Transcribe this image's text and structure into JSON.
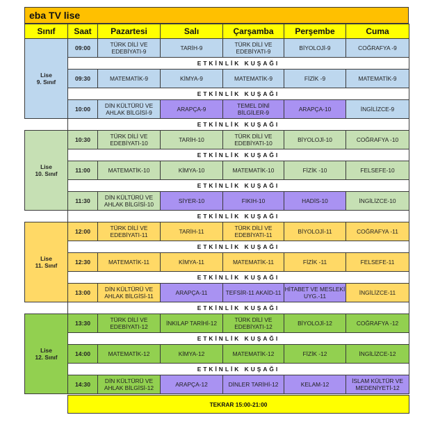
{
  "title": "eba TV lise",
  "headers": [
    "Sınıf",
    "Saat",
    "Pazartesi",
    "Salı",
    "Çarşamba",
    "Perşembe",
    "Cuma"
  ],
  "break_label": "ETKİNLİK KUŞAĞI",
  "repeat_label": "TEKRAR 15:00-21:00",
  "colors": {
    "title": "#ffc000",
    "header": "#ffff00",
    "elective": "#a992f2",
    "repeat": "#ffff00"
  },
  "grades": [
    {
      "label_1": "Lise",
      "label_2": "9. Sınıf",
      "color": "#bdd7ee",
      "slots": [
        {
          "time": "09:00",
          "subjects": [
            {
              "text": "TÜRK DİLİ VE EDEBİYATI-9"
            },
            {
              "text": "TARİH-9"
            },
            {
              "text": "TÜRK DİLİ VE EDEBİYATI-9"
            },
            {
              "text": "BİYOLOJİ-9"
            },
            {
              "text": "COĞRAFYA -9"
            }
          ]
        },
        {
          "time": "09:30",
          "subjects": [
            {
              "text": "MATEMATİK-9"
            },
            {
              "text": "KİMYA-9"
            },
            {
              "text": "MATEMATİK-9"
            },
            {
              "text": "FİZİK -9"
            },
            {
              "text": "MATEMATİK-9"
            }
          ]
        },
        {
          "time": "10:00",
          "subjects": [
            {
              "text": "DİN KÜLTÜRÜ VE AHLAK BİLGİSİ-9"
            },
            {
              "text": "ARAPÇA-9",
              "elective": true
            },
            {
              "text": "TEMEL DİNİ BİLGİLER-9",
              "elective": true
            },
            {
              "text": "ARAPÇA-10",
              "elective": true
            },
            {
              "text": "İNGİLİZCE-9"
            }
          ]
        }
      ]
    },
    {
      "label_1": "Lise",
      "label_2": "10. Sınıf",
      "color": "#c6e0b4",
      "slots": [
        {
          "time": "10:30",
          "subjects": [
            {
              "text": "TÜRK DİLİ VE EDEBİYATI-10"
            },
            {
              "text": "TARİH-10"
            },
            {
              "text": "TÜRK DİLİ VE EDEBİYATI-10"
            },
            {
              "text": "BİYOLOJİ-10"
            },
            {
              "text": "COĞRAFYA -10"
            }
          ]
        },
        {
          "time": "11:00",
          "subjects": [
            {
              "text": "MATEMATİK-10"
            },
            {
              "text": "KİMYA-10"
            },
            {
              "text": "MATEMATİK-10"
            },
            {
              "text": "FİZİK -10"
            },
            {
              "text": "FELSEFE-10"
            }
          ]
        },
        {
          "time": "11:30",
          "subjects": [
            {
              "text": "DİN KÜLTÜRÜ VE AHLAK BİLGİSİ-10"
            },
            {
              "text": "SİYER-10",
              "elective": true
            },
            {
              "text": "FIKIH-10",
              "elective": true
            },
            {
              "text": "HADİS-10",
              "elective": true
            },
            {
              "text": "İNGİLİZCE-10"
            }
          ]
        }
      ]
    },
    {
      "label_1": "Lise",
      "label_2": "11. Sınıf",
      "color": "#ffd966",
      "slots": [
        {
          "time": "12:00",
          "subjects": [
            {
              "text": "TÜRK DİLİ VE EDEBİYATI-11"
            },
            {
              "text": "TARİH-11"
            },
            {
              "text": "TÜRK DİLİ VE EDEBİYATI-11"
            },
            {
              "text": "BİYOLOJİ-11"
            },
            {
              "text": "COĞRAFYA -11"
            }
          ]
        },
        {
          "time": "12:30",
          "subjects": [
            {
              "text": "MATEMATİK-11"
            },
            {
              "text": "KİMYA-11"
            },
            {
              "text": "MATEMATİK-11"
            },
            {
              "text": "FİZİK -11"
            },
            {
              "text": "FELSEFE-11"
            }
          ]
        },
        {
          "time": "13:00",
          "subjects": [
            {
              "text": "DİN KÜLTÜRÜ VE AHLAK BİLGİSİ-11"
            },
            {
              "text": "ARAPÇA-11",
              "elective": true
            },
            {
              "text": "TEFSİR-11 AKAİD-11",
              "elective": true
            },
            {
              "text": "HİTABET VE MESLEKİ UYG.-11",
              "elective": true
            },
            {
              "text": "İNGİLİZCE-11"
            }
          ]
        }
      ]
    },
    {
      "label_1": "Lise",
      "label_2": "12. Sınıf",
      "color": "#92d050",
      "slots": [
        {
          "time": "13:30",
          "subjects": [
            {
              "text": "TÜRK DİLİ VE EDEBİYATI-12"
            },
            {
              "text": "İNKILAP TARİHİ-12"
            },
            {
              "text": "TÜRK DİLİ VE EDEBİYATI-12"
            },
            {
              "text": "BİYOLOJİ-12"
            },
            {
              "text": "COĞRAFYA -12"
            }
          ]
        },
        {
          "time": "14:00",
          "subjects": [
            {
              "text": "MATEMATİK-12"
            },
            {
              "text": "KİMYA-12"
            },
            {
              "text": "MATEMATİK-12"
            },
            {
              "text": "FİZİK -12"
            },
            {
              "text": "İNGİLİZCE-12"
            }
          ]
        },
        {
          "time": "14:30",
          "subjects": [
            {
              "text": "DİN KÜLTÜRÜ VE AHLAK BİLGİSİ-12"
            },
            {
              "text": "ARAPÇA-12",
              "elective": true
            },
            {
              "text": "DİNLER TARİHİ-12",
              "elective": true
            },
            {
              "text": "KELAM-12",
              "elective": true
            },
            {
              "text": "İSLAM KÜLTÜR VE MEDENİYETİ-12",
              "elective": true
            }
          ]
        }
      ]
    }
  ]
}
